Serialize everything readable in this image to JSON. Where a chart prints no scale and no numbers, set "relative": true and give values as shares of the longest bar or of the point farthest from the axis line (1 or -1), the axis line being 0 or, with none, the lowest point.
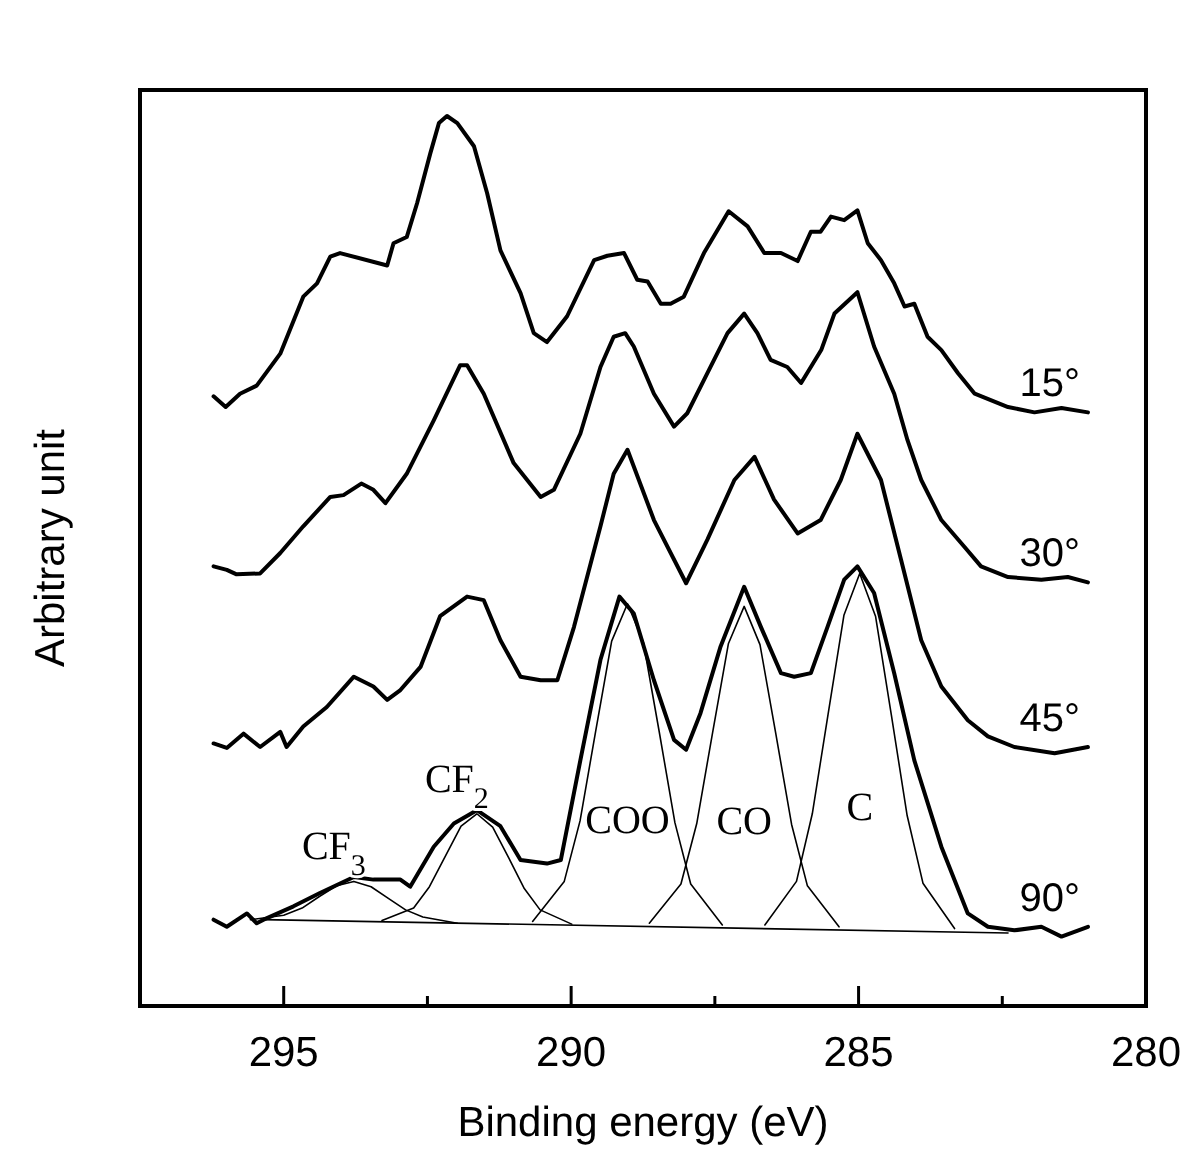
{
  "chart_data": {
    "type": "line",
    "relative": true,
    "xlabel": "Binding energy (eV)",
    "ylabel": "Arbitrary unit",
    "xlim": [
      297.5,
      280
    ],
    "xticks": [
      295,
      {
        "value": 292.5,
        "label": null
      },
      290,
      {
        "value": 287.5,
        "label": null
      },
      285,
      {
        "value": 282.5,
        "label": null
      },
      280
    ],
    "grid": false,
    "marker": "none",
    "line_style": "solid",
    "series": [
      {
        "name": "15°",
        "color": "#000000",
        "x": [
          296.22,
          296.01,
          295.76,
          295.47,
          295.06,
          294.66,
          294.42,
          294.19,
          294.02,
          293.2,
          293.09,
          292.86,
          292.68,
          292.45,
          292.3,
          292.16,
          291.98,
          291.69,
          291.46,
          291.23,
          290.88,
          290.65,
          290.42,
          290.07,
          289.6,
          289.37,
          289.08,
          288.85,
          288.67,
          288.44,
          288.27,
          288.04,
          287.69,
          287.26,
          286.93,
          286.64,
          286.35,
          286.06,
          285.83,
          285.66,
          285.48,
          285.25,
          285.02,
          284.84,
          284.61,
          284.38,
          284.2,
          284.03,
          283.8,
          283.56,
          283.27,
          282.98,
          282.4,
          281.94,
          281.47,
          281.01
        ],
        "values": [
          0.685,
          0.673,
          0.688,
          0.697,
          0.733,
          0.797,
          0.812,
          0.842,
          0.846,
          0.832,
          0.857,
          0.864,
          0.902,
          0.958,
          0.992,
          1,
          0.992,
          0.966,
          0.913,
          0.849,
          0.801,
          0.756,
          0.746,
          0.775,
          0.838,
          0.843,
          0.846,
          0.816,
          0.814,
          0.789,
          0.789,
          0.797,
          0.846,
          0.893,
          0.876,
          0.846,
          0.846,
          0.837,
          0.87,
          0.87,
          0.887,
          0.883,
          0.894,
          0.857,
          0.838,
          0.812,
          0.786,
          0.789,
          0.752,
          0.737,
          0.711,
          0.688,
          0.673,
          0.667,
          0.672,
          0.667
        ]
      },
      {
        "name": "30°",
        "color": "#000000",
        "x": [
          296.22,
          295.99,
          295.82,
          295.41,
          295.06,
          294.66,
          294.19,
          293.96,
          293.65,
          293.44,
          293.23,
          292.86,
          292.39,
          291.93,
          291.81,
          291.52,
          291,
          290.53,
          290.3,
          289.84,
          289.49,
          289.26,
          289.06,
          288.91,
          288.56,
          288.21,
          287.98,
          287.63,
          287.28,
          286.99,
          286.76,
          286.53,
          286.24,
          286,
          285.65,
          285.42,
          285.02,
          284.73,
          284.38,
          284.15,
          283.91,
          283.56,
          283.16,
          282.87,
          282.4,
          281.82,
          281.36,
          281.01
        ],
        "values": [
          0.494,
          0.49,
          0.485,
          0.486,
          0.509,
          0.539,
          0.572,
          0.574,
          0.587,
          0.58,
          0.565,
          0.598,
          0.658,
          0.72,
          0.72,
          0.688,
          0.61,
          0.572,
          0.58,
          0.643,
          0.718,
          0.752,
          0.756,
          0.741,
          0.688,
          0.651,
          0.666,
          0.711,
          0.756,
          0.778,
          0.756,
          0.726,
          0.718,
          0.7,
          0.737,
          0.778,
          0.802,
          0.741,
          0.688,
          0.636,
          0.591,
          0.546,
          0.516,
          0.494,
          0.482,
          0.479,
          0.482,
          0.476
        ]
      },
      {
        "name": "45°",
        "color": "#000000",
        "x": [
          296.22,
          295.99,
          295.7,
          295.41,
          295.06,
          294.95,
          294.66,
          294.25,
          293.78,
          293.44,
          293.2,
          292.97,
          292.62,
          292.28,
          291.81,
          291.52,
          291.23,
          290.88,
          290.53,
          290.24,
          289.95,
          289.49,
          289.26,
          289.02,
          288.56,
          288,
          287.63,
          287.16,
          286.81,
          286.47,
          286.06,
          285.66,
          285.31,
          285.02,
          284.61,
          284.26,
          283.91,
          283.56,
          283.1,
          282.75,
          282.29,
          281.59,
          281.01
        ],
        "values": [
          0.295,
          0.29,
          0.306,
          0.291,
          0.308,
          0.291,
          0.314,
          0.336,
          0.37,
          0.359,
          0.344,
          0.355,
          0.381,
          0.438,
          0.46,
          0.456,
          0.411,
          0.37,
          0.366,
          0.366,
          0.426,
          0.539,
          0.598,
          0.625,
          0.546,
          0.475,
          0.524,
          0.591,
          0.617,
          0.569,
          0.531,
          0.546,
          0.591,
          0.643,
          0.591,
          0.501,
          0.411,
          0.359,
          0.321,
          0.303,
          0.291,
          0.284,
          0.291
        ]
      },
      {
        "name": "90°",
        "color": "#000000",
        "x": [
          296.22,
          295.99,
          295.64,
          295.47,
          295.35,
          294.83,
          294.37,
          293.78,
          293.44,
          292.97,
          292.8,
          292.39,
          292.04,
          291.64,
          291.23,
          290.88,
          290.42,
          290.18,
          289.84,
          289.49,
          289.16,
          288.91,
          288.56,
          288.21,
          288,
          287.75,
          287.4,
          286.99,
          286.7,
          286.35,
          286.12,
          285.83,
          285.54,
          285.25,
          285.02,
          284.73,
          284.38,
          284.03,
          283.56,
          283.1,
          282.75,
          282.29,
          281.82,
          281.47,
          281.01
        ],
        "values": [
          0.097,
          0.089,
          0.104,
          0.093,
          0.097,
          0.112,
          0.127,
          0.145,
          0.142,
          0.142,
          0.134,
          0.179,
          0.205,
          0.22,
          0.202,
          0.164,
          0.16,
          0.164,
          0.276,
          0.389,
          0.46,
          0.441,
          0.366,
          0.299,
          0.288,
          0.329,
          0.404,
          0.471,
          0.426,
          0.374,
          0.37,
          0.374,
          0.426,
          0.479,
          0.494,
          0.464,
          0.374,
          0.276,
          0.179,
          0.104,
          0.089,
          0.085,
          0.089,
          0.078,
          0.089
        ]
      },
      {
        "color": "#000000",
        "x": [
          295.35,
          282.4
        ],
        "values": [
          0.097,
          0.082
        ]
      },
      {
        "name": "CF$_{3}$",
        "color": "#000000",
        "x": [
          295.58,
          295,
          294.68,
          294.38,
          294.08,
          293.78,
          293.48,
          293.18,
          292.88,
          292.58,
          291.98
        ],
        "values": [
          0.097,
          0.102,
          0.11,
          0.123,
          0.135,
          0.14,
          0.134,
          0.121,
          0.108,
          0.1,
          0.093
        ]
      },
      {
        "name": "CF$_{2}$",
        "color": "#000000",
        "x": [
          293.29,
          292.74,
          292.465,
          292.19,
          291.915,
          291.64,
          291.365,
          291.09,
          290.815,
          290.54,
          289.99
        ],
        "values": [
          0.096,
          0.11,
          0.134,
          0.168,
          0.202,
          0.216,
          0.201,
          0.167,
          0.132,
          0.108,
          0.092
        ]
      },
      {
        "name": "COO",
        "color": "#000000",
        "x": [
          290.67,
          290.12,
          289.845,
          289.57,
          289.295,
          289.02,
          288.745,
          288.47,
          288.195,
          287.92,
          287.37
        ],
        "values": [
          0.095,
          0.14,
          0.208,
          0.31,
          0.41,
          0.452,
          0.409,
          0.309,
          0.206,
          0.137,
          0.091
        ]
      },
      {
        "name": "CO",
        "color": "#000000",
        "x": [
          288.64,
          288.09,
          287.815,
          287.54,
          287.265,
          286.99,
          286.715,
          286.44,
          286.165,
          285.89,
          285.34
        ],
        "values": [
          0.093,
          0.137,
          0.205,
          0.307,
          0.407,
          0.449,
          0.406,
          0.306,
          0.204,
          0.135,
          0.089
        ]
      },
      {
        "name": "C",
        "color": "#000000",
        "x": [
          286.63,
          286.08,
          285.805,
          285.53,
          285.255,
          284.98,
          284.705,
          284.43,
          284.155,
          283.88,
          283.33
        ],
        "values": [
          0.091,
          0.14,
          0.216,
          0.328,
          0.439,
          0.486,
          0.438,
          0.327,
          0.214,
          0.138,
          0.087
        ]
      }
    ]
  }
}
